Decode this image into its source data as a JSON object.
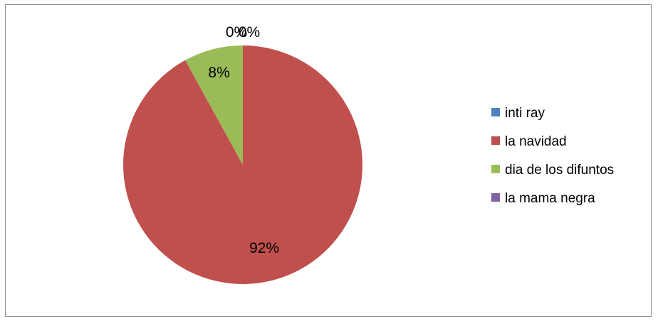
{
  "chart_data": {
    "type": "pie",
    "categories": [
      "inti ray",
      "la navidad",
      "dia de los difuntos",
      "la mama negra"
    ],
    "values": [
      0,
      92,
      8,
      0
    ],
    "data_labels": [
      "0%",
      "92%",
      "8%",
      "0%"
    ],
    "colors": [
      "#4f81bd",
      "#c0504d",
      "#9bbb59",
      "#8064a2"
    ],
    "legend_position": "right",
    "start_angle_deg": 0,
    "direction": "clockwise"
  }
}
